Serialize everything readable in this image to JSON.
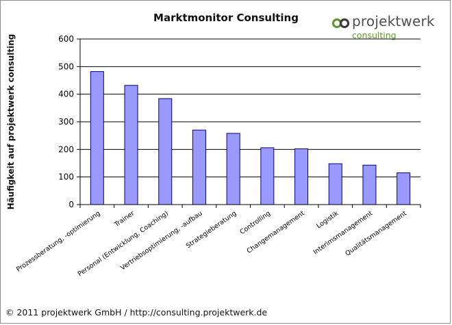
{
  "chart_data": {
    "type": "bar",
    "title": "Marktmonitor Consulting",
    "ylabel": "Häufigkeit auf projektwerk consulting",
    "xlabel": "",
    "ylim": [
      0,
      600
    ],
    "yticks": [
      0,
      100,
      200,
      300,
      400,
      500,
      600
    ],
    "grid": true,
    "legend": "none",
    "categories": [
      "Prozessberatung, -optimierung",
      "Trainer",
      "Personal (Entwicklung, Coaching)",
      "Vertriebsoptimierung, -aufbau",
      "Strategieberatung",
      "Controlling",
      "Changemanagement",
      "Logistik",
      "Interimsmanagement",
      "Qualitätsmanagement"
    ],
    "values": [
      482,
      432,
      384,
      270,
      258,
      206,
      202,
      148,
      143,
      115
    ],
    "colors": {
      "bar_fill": "#9999ff",
      "bar_stroke": "#000080",
      "grid": "#000000"
    }
  },
  "logo": {
    "name": "projektwerk",
    "sub": "consulting",
    "accent_color": "#5e9a32"
  },
  "footer": "© 2011 projektwerk GmbH / http://consulting.projektwerk.de"
}
